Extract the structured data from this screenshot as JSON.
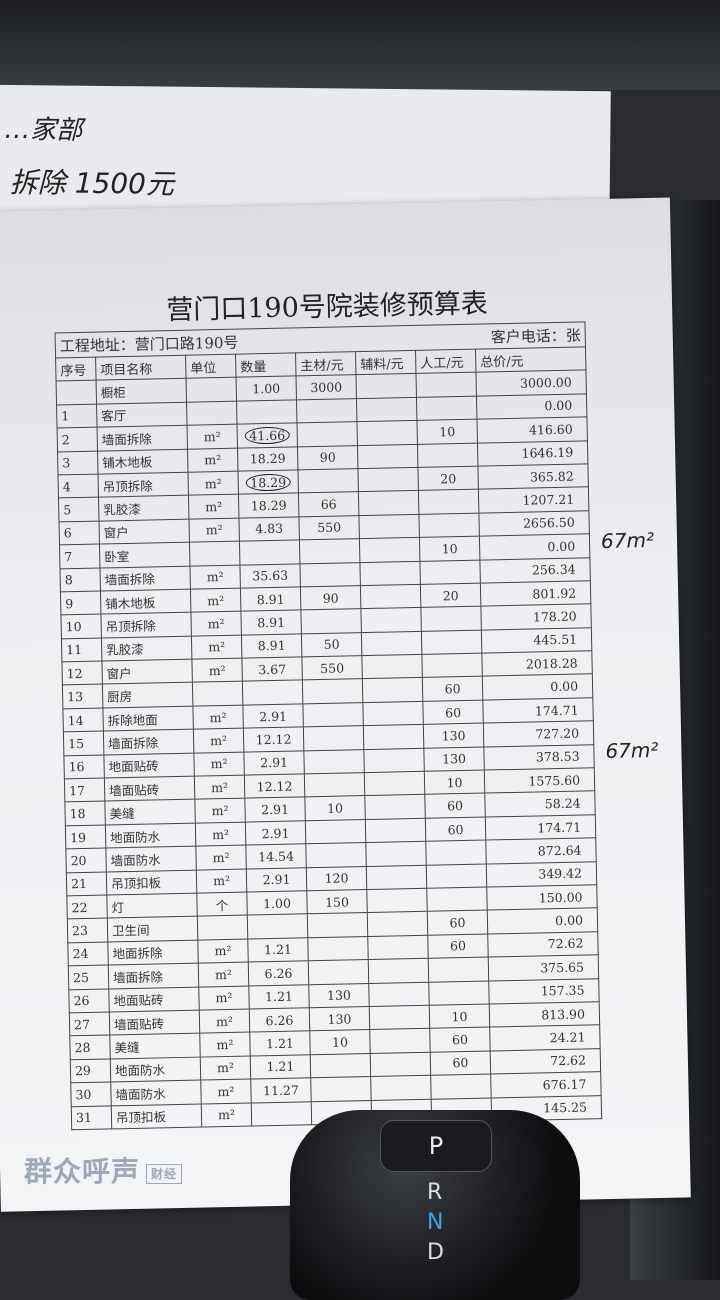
{
  "top_note": {
    "line1": "…家部",
    "line2": "拆除 1500元"
  },
  "side_note": {
    "area1": "67m²",
    "area2": "67m²"
  },
  "document": {
    "title": "营门口190号院装修预算表",
    "address_label": "工程地址：营门口路190号",
    "phone_label": "客户电话：张",
    "columns": [
      "序号",
      "项目名称",
      "单位",
      "数量",
      "主材/元",
      "辅料/元",
      "人工/元",
      "总价/元"
    ],
    "rows": [
      [
        "",
        "橱柜",
        "",
        "1.00",
        "3000",
        "",
        "",
        "3000.00"
      ],
      [
        "1",
        "客厅",
        "",
        "",
        "",
        "",
        "",
        "0.00"
      ],
      [
        "2",
        "墙面拆除",
        "m²",
        "41.66",
        "",
        "",
        "10",
        "416.60"
      ],
      [
        "3",
        "铺木地板",
        "m²",
        "18.29",
        "90",
        "",
        "",
        "1646.19"
      ],
      [
        "4",
        "吊顶拆除",
        "m²",
        "18.29",
        "",
        "",
        "20",
        "365.82"
      ],
      [
        "5",
        "乳胶漆",
        "m²",
        "18.29",
        "66",
        "",
        "",
        "1207.21"
      ],
      [
        "6",
        "窗户",
        "m²",
        "4.83",
        "550",
        "",
        "",
        "2656.50"
      ],
      [
        "7",
        "卧室",
        "",
        "",
        "",
        "",
        "10",
        "0.00"
      ],
      [
        "8",
        "墙面拆除",
        "m²",
        "35.63",
        "",
        "",
        "",
        "256.34"
      ],
      [
        "9",
        "铺木地板",
        "m²",
        "8.91",
        "90",
        "",
        "20",
        "801.92"
      ],
      [
        "10",
        "吊顶拆除",
        "m²",
        "8.91",
        "",
        "",
        "",
        "178.20"
      ],
      [
        "11",
        "乳胶漆",
        "m²",
        "8.91",
        "50",
        "",
        "",
        "445.51"
      ],
      [
        "12",
        "窗户",
        "m²",
        "3.67",
        "550",
        "",
        "",
        "2018.28"
      ],
      [
        "13",
        "厨房",
        "",
        "",
        "",
        "",
        "60",
        "0.00"
      ],
      [
        "14",
        "拆除地面",
        "m²",
        "2.91",
        "",
        "",
        "60",
        "174.71"
      ],
      [
        "15",
        "墙面拆除",
        "m²",
        "12.12",
        "",
        "",
        "130",
        "727.20"
      ],
      [
        "16",
        "地面贴砖",
        "m²",
        "2.91",
        "",
        "",
        "130",
        "378.53"
      ],
      [
        "17",
        "墙面贴砖",
        "m²",
        "12.12",
        "",
        "",
        "10",
        "1575.60"
      ],
      [
        "18",
        "美缝",
        "m²",
        "2.91",
        "10",
        "",
        "60",
        "58.24"
      ],
      [
        "19",
        "地面防水",
        "m²",
        "2.91",
        "",
        "",
        "60",
        "174.71"
      ],
      [
        "20",
        "墙面防水",
        "m²",
        "14.54",
        "",
        "",
        "",
        "872.64"
      ],
      [
        "21",
        "吊顶扣板",
        "m²",
        "2.91",
        "120",
        "",
        "",
        "349.42"
      ],
      [
        "22",
        "灯",
        "个",
        "1.00",
        "150",
        "",
        "",
        "150.00"
      ],
      [
        "23",
        "卫生间",
        "",
        "",
        "",
        "",
        "60",
        "0.00"
      ],
      [
        "24",
        "地面拆除",
        "m²",
        "1.21",
        "",
        "",
        "60",
        "72.62"
      ],
      [
        "25",
        "墙面拆除",
        "m²",
        "6.26",
        "",
        "",
        "",
        "375.65"
      ],
      [
        "26",
        "地面贴砖",
        "m²",
        "1.21",
        "130",
        "",
        "",
        "157.35"
      ],
      [
        "27",
        "墙面贴砖",
        "m²",
        "6.26",
        "130",
        "",
        "10",
        "813.90"
      ],
      [
        "28",
        "美缝",
        "m²",
        "1.21",
        "10",
        "",
        "60",
        "24.21"
      ],
      [
        "29",
        "地面防水",
        "m²",
        "1.21",
        "",
        "",
        "60",
        "72.62"
      ],
      [
        "30",
        "墙面防水",
        "m²",
        "11.27",
        "",
        "",
        "",
        "676.17"
      ],
      [
        "31",
        "吊顶扣板",
        "m²",
        "",
        "",
        "",
        "",
        "145.25"
      ]
    ],
    "circled_quantities": [
      "41.66",
      "18.29"
    ]
  },
  "watermark": {
    "text": "群众呼声",
    "badge": "财经"
  },
  "shifter": {
    "gears": [
      "P",
      "R",
      "N",
      "D"
    ],
    "active_color": "#3aa8e0"
  }
}
